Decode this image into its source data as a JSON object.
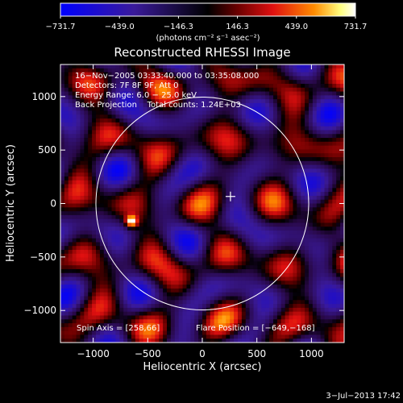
{
  "chart_data": {
    "type": "heatmap",
    "title": "Reconstructed RHESSI Image",
    "xlabel": "Heliocentric X (arcsec)",
    "ylabel": "Heliocentric Y (arcsec)",
    "xlim": [
      -1300,
      1300
    ],
    "ylim": [
      -1300,
      1300
    ],
    "x_ticks": [
      -1000,
      -500,
      0,
      500,
      1000
    ],
    "y_ticks": [
      -1000,
      -500,
      0,
      500,
      1000
    ],
    "x_tick_labels": [
      "−1000",
      "−500",
      "0",
      "500",
      "1000"
    ],
    "y_tick_labels": [
      "−1000",
      "−500",
      "0",
      "500",
      "1000"
    ],
    "colorbar": {
      "min": -731.7,
      "max": 731.7,
      "tick_values": [
        -731.7,
        -439.0,
        -146.3,
        146.3,
        439.0,
        731.7
      ],
      "tick_labels": [
        "−731.7",
        "−439.0",
        "−146.3",
        "146.3",
        "439.0",
        "731.7"
      ],
      "unit_label": "(photons cm⁻² s⁻¹ asec⁻²)",
      "colors": [
        "#0000ff",
        "#3a1a9a",
        "#000000",
        "#6a0000",
        "#e01010",
        "#ff8c00",
        "#ffff80",
        "#ffffff"
      ]
    },
    "info_lines": [
      "16−Nov−2005 03:33:40.000 to 03:35:08.000",
      "Detectors: 7F 8F 9F, Att 0",
      "Energy Range: 6.0 − 25.0 keV",
      "Back Projection    Total counts: 1.24E+03"
    ],
    "spin_axis": "Spin Axis = [258,66]",
    "flare_position": "Flare Position = [−649,−168]",
    "solar_disk": {
      "center_arcsec": [
        0,
        0
      ],
      "radius_arcsec": 975
    },
    "spin_axis_point": [
      258,
      66
    ],
    "bright_source": {
      "x": -649,
      "y": -168,
      "value": 731.7
    },
    "timestamp": "3−Jul−2013 17:42"
  }
}
